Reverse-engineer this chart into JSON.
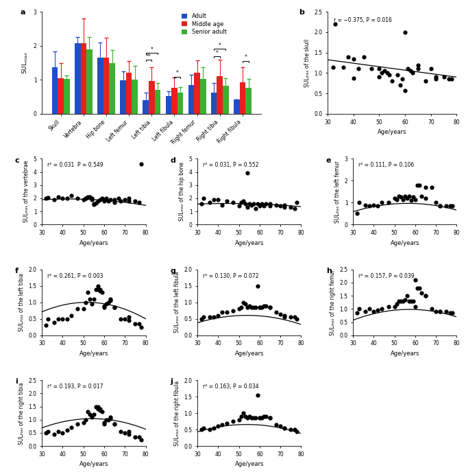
{
  "bar_categories": [
    "Skull",
    "Vertebra",
    "Hip bone",
    "Left femur",
    "Left tibia",
    "Left fibula",
    "Right femur",
    "Right tibia",
    "Right fibula"
  ],
  "bar_adult": [
    1.38,
    2.07,
    1.65,
    0.98,
    0.4,
    0.52,
    0.85,
    0.63,
    0.42
  ],
  "bar_middle": [
    1.05,
    2.07,
    1.65,
    1.2,
    0.97,
    0.77,
    1.2,
    1.1,
    0.93
  ],
  "bar_senior": [
    1.03,
    1.9,
    1.5,
    1.0,
    0.7,
    0.62,
    1.02,
    0.82,
    0.77
  ],
  "bar_adult_err": [
    0.45,
    0.18,
    0.45,
    0.27,
    0.22,
    0.15,
    0.3,
    0.28,
    0.0
  ],
  "bar_middle_err": [
    0.45,
    0.73,
    0.58,
    0.35,
    0.4,
    0.3,
    0.38,
    0.5,
    0.43
  ],
  "bar_senior_err": [
    0.1,
    0.35,
    0.38,
    0.42,
    0.2,
    0.17,
    0.35,
    0.23,
    0.25
  ],
  "color_adult": "#1F4FC8",
  "color_middle": "#E82020",
  "color_senior": "#3CB030",
  "panel_b": {
    "label": "r = −0.375, P = 0.016",
    "ylabel": "SULₘₐₓ of the skull",
    "xlim": [
      30,
      80
    ],
    "ylim": [
      0.0,
      2.5
    ],
    "yticks": [
      0.0,
      0.5,
      1.0,
      1.5,
      2.0,
      2.5
    ],
    "slope": -0.0085,
    "intercept": 1.58,
    "x": [
      32,
      33,
      36,
      38,
      40,
      40,
      42,
      44,
      47,
      50,
      50,
      51,
      52,
      53,
      54,
      55,
      57,
      58,
      59,
      60,
      60,
      61,
      62,
      63,
      65,
      65,
      68,
      70,
      72,
      72,
      75,
      77,
      78
    ],
    "y": [
      1.15,
      2.2,
      1.15,
      1.4,
      0.87,
      1.35,
      1.1,
      1.4,
      1.1,
      1.1,
      0.9,
      1.0,
      1.05,
      1.0,
      0.95,
      0.8,
      0.95,
      0.7,
      0.85,
      2.0,
      0.57,
      1.1,
      1.05,
      1.0,
      1.2,
      1.1,
      0.8,
      1.1,
      0.9,
      0.85,
      0.9,
      0.85,
      0.85
    ]
  },
  "panel_c": {
    "label": "r² = 0.031  P = 0.549",
    "ylabel": "SULₘₐₓ of the vertebrae",
    "xlim": [
      30,
      80
    ],
    "ylim": [
      0,
      5
    ],
    "yticks": [
      0,
      1,
      2,
      3,
      4,
      5
    ],
    "poly": [
      -0.00035,
      0.03,
      1.3
    ],
    "x": [
      32,
      33,
      36,
      38,
      40,
      42,
      44,
      47,
      50,
      51,
      51,
      52,
      53,
      54,
      54,
      55,
      55,
      56,
      57,
      58,
      59,
      60,
      60,
      61,
      62,
      63,
      65,
      65,
      67,
      68,
      70,
      72,
      72,
      75,
      77,
      78
    ],
    "y": [
      2.0,
      2.05,
      1.9,
      2.1,
      2.0,
      2.0,
      2.2,
      2.0,
      1.9,
      2.0,
      2.0,
      2.1,
      2.1,
      1.9,
      2.0,
      1.6,
      1.55,
      1.65,
      1.8,
      1.9,
      2.0,
      1.9,
      1.8,
      2.0,
      1.8,
      1.9,
      1.7,
      1.9,
      2.0,
      1.8,
      1.9,
      2.0,
      1.8,
      1.8,
      1.7,
      4.6
    ]
  },
  "panel_d": {
    "label": "r² = 0.031, P = 0.552",
    "ylabel": "SULₘₐₓ of the hip bone",
    "xlim": [
      30,
      80
    ],
    "ylim": [
      0,
      5
    ],
    "yticks": [
      0,
      1,
      2,
      3,
      4,
      5
    ],
    "poly": [
      -0.0002,
      0.018,
      1.2
    ],
    "x": [
      32,
      33,
      36,
      38,
      40,
      42,
      44,
      47,
      50,
      51,
      52,
      53,
      54,
      54,
      55,
      56,
      57,
      58,
      59,
      60,
      60,
      61,
      62,
      63,
      65,
      65,
      68,
      70,
      72,
      72,
      75,
      77,
      78
    ],
    "y": [
      1.6,
      2.0,
      1.7,
      1.9,
      1.9,
      1.5,
      1.8,
      1.7,
      1.4,
      1.7,
      1.8,
      1.6,
      1.3,
      3.9,
      1.6,
      1.5,
      1.6,
      1.2,
      1.6,
      1.5,
      1.4,
      1.6,
      1.4,
      1.6,
      1.4,
      1.6,
      1.5,
      1.4,
      1.5,
      1.3,
      1.3,
      1.2,
      1.7
    ]
  },
  "panel_e": {
    "label": "r² = 0.111, P = 0.106",
    "ylabel": "SULₘₐₓ of the left femur",
    "xlim": [
      30,
      80
    ],
    "ylim": [
      0,
      3
    ],
    "yticks": [
      0,
      1,
      2,
      3
    ],
    "poly": [
      -0.00055,
      0.062,
      -0.78
    ],
    "x": [
      32,
      33,
      36,
      38,
      40,
      42,
      44,
      47,
      50,
      51,
      52,
      53,
      54,
      55,
      56,
      57,
      58,
      59,
      60,
      61,
      62,
      63,
      65,
      65,
      68,
      70,
      72,
      72,
      75,
      77,
      78
    ],
    "y": [
      0.5,
      1.0,
      0.9,
      0.85,
      0.9,
      0.85,
      1.0,
      1.0,
      1.2,
      1.15,
      1.3,
      1.25,
      1.15,
      1.3,
      1.2,
      1.3,
      1.1,
      1.25,
      1.15,
      1.8,
      1.8,
      1.3,
      1.7,
      1.2,
      1.7,
      1.0,
      0.85,
      0.85,
      0.85,
      0.85,
      0.85
    ]
  },
  "panel_f": {
    "label": "r² = 0.261, P = 0.003",
    "ylabel": "SULₘₐₓ of the left tibia",
    "xlim": [
      30,
      80
    ],
    "ylim": [
      0,
      2.0
    ],
    "yticks": [
      0,
      0.5,
      1.0,
      1.5,
      2.0
    ],
    "poly": [
      -0.00062,
      0.064,
      -0.65
    ],
    "x": [
      32,
      33,
      36,
      38,
      40,
      42,
      44,
      47,
      50,
      51,
      52,
      53,
      54,
      55,
      56,
      57,
      57,
      58,
      58,
      59,
      60,
      60,
      61,
      62,
      63,
      63,
      65,
      65,
      68,
      70,
      72,
      72,
      75,
      77,
      78
    ],
    "y": [
      0.3,
      0.5,
      0.4,
      0.5,
      0.5,
      0.5,
      0.6,
      0.8,
      0.8,
      1.0,
      1.3,
      1.1,
      0.95,
      1.1,
      1.4,
      1.5,
      1.4,
      1.4,
      1.35,
      1.3,
      0.9,
      0.85,
      0.95,
      1.0,
      1.1,
      1.05,
      0.85,
      0.85,
      0.5,
      0.5,
      0.45,
      0.55,
      0.35,
      0.35,
      0.25
    ]
  },
  "panel_g": {
    "label": "r² = 0.130, P = 0.072",
    "ylabel": "SULₘₐₓ of the left fibula",
    "xlim": [
      30,
      80
    ],
    "ylim": [
      0,
      2.0
    ],
    "yticks": [
      0,
      0.5,
      1.0,
      1.5,
      2.0
    ],
    "poly": [
      -0.0004,
      0.043,
      -0.55
    ],
    "x": [
      32,
      33,
      36,
      38,
      40,
      42,
      44,
      47,
      50,
      51,
      52,
      53,
      54,
      55,
      56,
      57,
      58,
      59,
      60,
      60,
      61,
      62,
      63,
      65,
      65,
      68,
      70,
      72,
      72,
      75,
      77,
      78
    ],
    "y": [
      0.5,
      0.55,
      0.55,
      0.55,
      0.6,
      0.7,
      0.7,
      0.75,
      0.8,
      0.85,
      1.0,
      0.95,
      0.85,
      0.9,
      0.85,
      0.85,
      0.85,
      1.5,
      0.85,
      0.85,
      0.85,
      0.9,
      0.9,
      0.85,
      0.85,
      0.7,
      0.65,
      0.6,
      0.55,
      0.55,
      0.55,
      0.5
    ]
  },
  "panel_h": {
    "label": "r² = 0.157, P = 0.039",
    "ylabel": "SULₘₐₓ of the right femur",
    "xlim": [
      30,
      80
    ],
    "ylim": [
      0,
      2.5
    ],
    "yticks": [
      0,
      0.5,
      1.0,
      1.5,
      2.0,
      2.5
    ],
    "poly": [
      -0.00055,
      0.063,
      -0.82
    ],
    "x": [
      32,
      33,
      36,
      38,
      40,
      42,
      44,
      47,
      50,
      51,
      52,
      53,
      54,
      55,
      56,
      57,
      58,
      59,
      60,
      60,
      61,
      62,
      63,
      65,
      65,
      68,
      70,
      72,
      72,
      75,
      77,
      78
    ],
    "y": [
      0.85,
      1.0,
      0.9,
      1.0,
      0.9,
      0.95,
      1.0,
      1.1,
      1.1,
      1.2,
      1.3,
      1.3,
      1.3,
      1.35,
      1.5,
      1.3,
      1.3,
      1.3,
      1.1,
      2.1,
      1.8,
      1.8,
      1.6,
      1.5,
      1.5,
      1.0,
      0.9,
      0.9,
      0.9,
      0.9,
      0.85,
      0.85
    ]
  },
  "panel_i": {
    "label": "r² = 0.193, P = 0.017",
    "ylabel": "SULₘₐₓ of the right tibia",
    "xlim": [
      30,
      80
    ],
    "ylim": [
      0,
      2.5
    ],
    "yticks": [
      0,
      0.5,
      1.0,
      1.5,
      2.0,
      2.5
    ],
    "poly": [
      -0.0006,
      0.065,
      -0.72
    ],
    "x": [
      32,
      33,
      36,
      38,
      40,
      42,
      44,
      47,
      50,
      51,
      52,
      53,
      54,
      55,
      56,
      57,
      57,
      58,
      58,
      59,
      60,
      60,
      61,
      62,
      63,
      63,
      65,
      65,
      68,
      70,
      72,
      72,
      75,
      77,
      78
    ],
    "y": [
      0.5,
      0.55,
      0.45,
      0.55,
      0.5,
      0.6,
      0.7,
      0.85,
      0.9,
      1.0,
      1.3,
      1.2,
      1.1,
      1.2,
      1.5,
      1.5,
      1.4,
      1.4,
      1.35,
      1.3,
      0.9,
      0.85,
      1.0,
      1.0,
      1.1,
      1.05,
      0.85,
      0.85,
      0.55,
      0.5,
      0.45,
      0.55,
      0.35,
      0.35,
      0.25
    ]
  },
  "panel_j": {
    "label": "r² = 0.163, P = 0.034",
    "ylabel": "SULₘₐₓ of the right fibula",
    "xlim": [
      30,
      80
    ],
    "ylim": [
      0,
      2.0
    ],
    "yticks": [
      0,
      0.5,
      1.0,
      1.5,
      2.0
    ],
    "poly": [
      -0.0004,
      0.043,
      -0.5
    ],
    "x": [
      32,
      33,
      36,
      38,
      40,
      42,
      44,
      47,
      50,
      51,
      52,
      53,
      54,
      55,
      56,
      57,
      58,
      59,
      60,
      60,
      61,
      62,
      63,
      65,
      65,
      68,
      70,
      72,
      72,
      75,
      77,
      78
    ],
    "y": [
      0.5,
      0.55,
      0.5,
      0.55,
      0.6,
      0.65,
      0.7,
      0.75,
      0.8,
      0.9,
      1.0,
      0.9,
      0.85,
      0.9,
      0.85,
      0.85,
      0.85,
      1.55,
      0.85,
      0.85,
      0.85,
      0.9,
      0.9,
      0.85,
      0.85,
      0.65,
      0.6,
      0.55,
      0.55,
      0.5,
      0.5,
      0.45
    ]
  }
}
